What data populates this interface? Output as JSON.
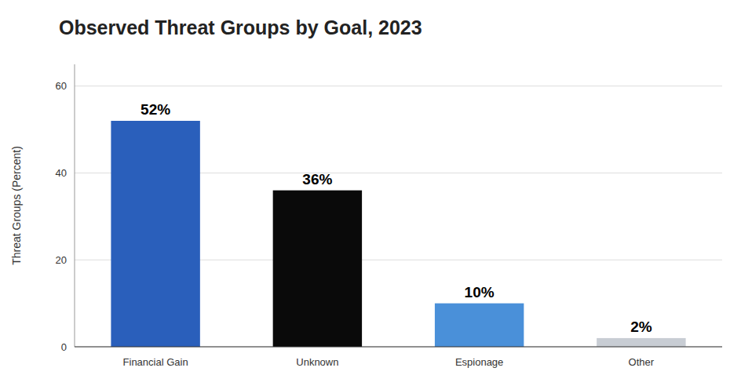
{
  "chart_data": {
    "type": "bar",
    "title": "Observed Threat Groups by Goal, 2023",
    "categories": [
      "Financial Gain",
      "Unknown",
      "Espionage",
      "Other"
    ],
    "values": [
      52,
      36,
      10,
      2
    ],
    "value_labels": [
      "52%",
      "36%",
      "10%",
      "2%"
    ],
    "colors": [
      "#2a5fbb",
      "#0a0a0a",
      "#4a90d9",
      "#c8cdd4"
    ],
    "ylabel": "Threat Groups (Percent)",
    "ylim": [
      0,
      65
    ],
    "yticks": [
      0,
      20,
      40,
      60
    ],
    "grid": true,
    "data_labels": true
  }
}
